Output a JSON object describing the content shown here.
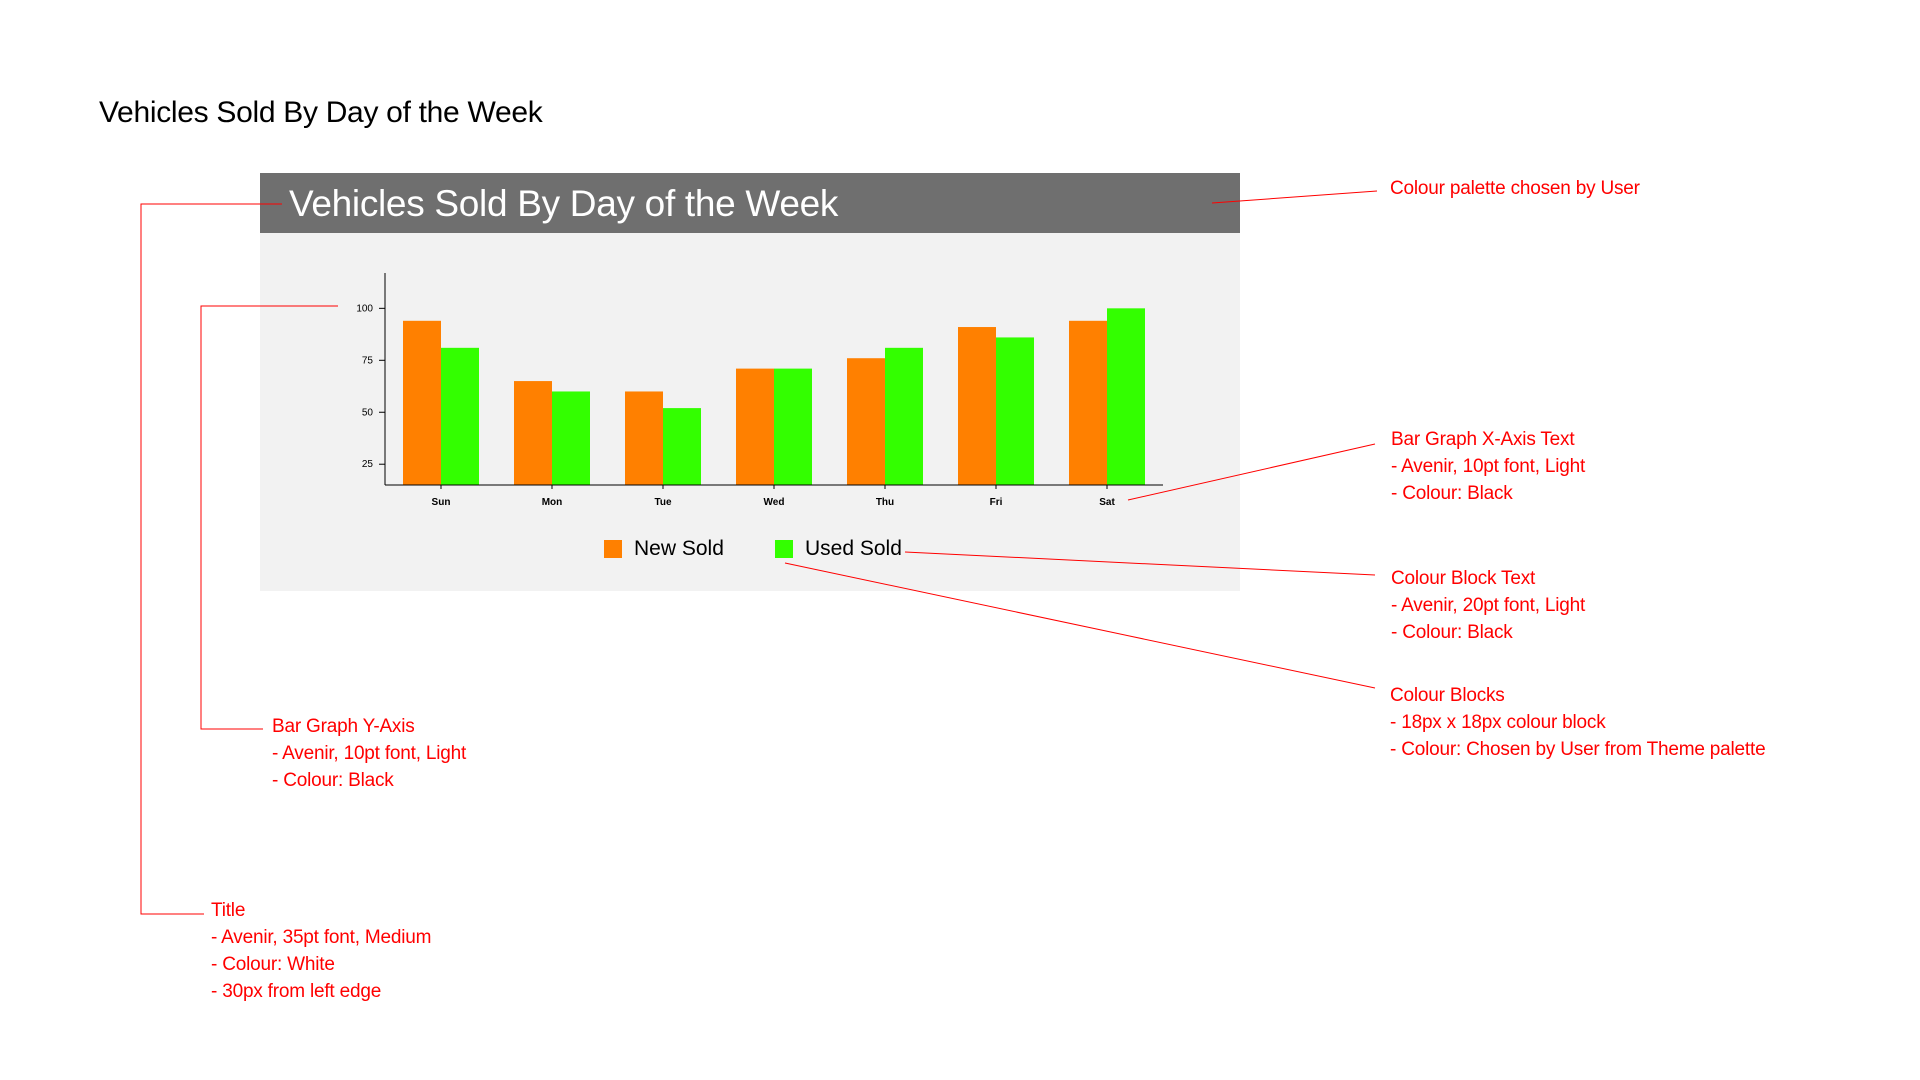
{
  "page": {
    "title": "Vehicles Sold By Day of the Week"
  },
  "chart_data": {
    "type": "bar",
    "title": "Vehicles Sold By Day of the Week",
    "categories": [
      "Sun",
      "Mon",
      "Tue",
      "Wed",
      "Thu",
      "Fri",
      "Sat"
    ],
    "series": [
      {
        "name": "New Sold",
        "values": [
          94,
          65,
          60,
          71,
          76,
          91,
          94
        ],
        "color": "#ff8000"
      },
      {
        "name": "Used Sold",
        "values": [
          81,
          60,
          52,
          71,
          81,
          86,
          100
        ],
        "color": "#33ff00"
      }
    ],
    "y_ticks": [
      "25",
      "50",
      "75",
      "100"
    ],
    "ylim": [
      15,
      117
    ],
    "grid": false,
    "legend_position": "bottom",
    "header_color": "#6f6f6f",
    "panel_color": "#f2f2f2"
  },
  "annotations": {
    "palette": [
      "Colour palette chosen by User"
    ],
    "x_axis_text": [
      "Bar Graph X-Axis Text",
      "- Avenir, 10pt font, Light",
      "- Colour: Black"
    ],
    "colour_block_text": [
      "Colour Block Text",
      "- Avenir, 20pt font, Light",
      "- Colour: Black"
    ],
    "colour_blocks": [
      "Colour Blocks",
      "- 18px x 18px colour block",
      "- Colour: Chosen by User from Theme palette"
    ],
    "y_axis": [
      "Bar Graph Y-Axis",
      "- Avenir, 10pt font, Light",
      "- Colour: Black"
    ],
    "title": [
      "Title",
      "- Avenir, 35pt font, Medium",
      "- Colour: White",
      "- 30px from left edge"
    ]
  },
  "annotation_color": "#ff0000"
}
